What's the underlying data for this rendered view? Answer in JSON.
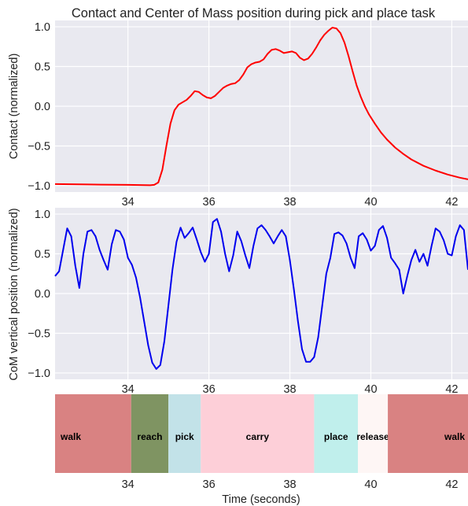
{
  "chart_data": [
    {
      "type": "line",
      "title": "Contact and Center of Mass position during pick and place task",
      "ylabel": "Contact (normalized)",
      "xlim": [
        32.2,
        42.4
      ],
      "ylim": [
        -1.08,
        1.08
      ],
      "xticks": [
        "34",
        "36",
        "38",
        "40",
        "42"
      ],
      "yticks": [
        "1.0",
        "0.5",
        "0.0",
        "−0.5",
        "−1.0"
      ],
      "grid": true,
      "series": [
        {
          "color": "#ff0000",
          "x": [
            32.2,
            33.0,
            34.0,
            34.55,
            34.65,
            34.75,
            34.85,
            34.95,
            35.05,
            35.15,
            35.25,
            35.35,
            35.45,
            35.55,
            35.65,
            35.75,
            35.85,
            35.95,
            36.05,
            36.15,
            36.25,
            36.35,
            36.45,
            36.55,
            36.65,
            36.75,
            36.85,
            36.95,
            37.05,
            37.15,
            37.25,
            37.35,
            37.45,
            37.55,
            37.65,
            37.75,
            37.85,
            37.95,
            38.05,
            38.15,
            38.25,
            38.35,
            38.45,
            38.55,
            38.65,
            38.75,
            38.85,
            38.95,
            39.05,
            39.15,
            39.25,
            39.35,
            39.45,
            39.55,
            39.65,
            39.75,
            39.85,
            39.95,
            40.1,
            40.25,
            40.4,
            40.6,
            40.8,
            41.0,
            41.3,
            41.6,
            41.9,
            42.2,
            42.4
          ],
          "y": [
            -0.98,
            -0.985,
            -0.99,
            -0.995,
            -0.99,
            -0.96,
            -0.8,
            -0.5,
            -0.22,
            -0.05,
            0.02,
            0.05,
            0.08,
            0.13,
            0.19,
            0.18,
            0.14,
            0.11,
            0.1,
            0.13,
            0.18,
            0.23,
            0.26,
            0.28,
            0.29,
            0.33,
            0.4,
            0.49,
            0.53,
            0.55,
            0.56,
            0.59,
            0.66,
            0.71,
            0.72,
            0.7,
            0.67,
            0.68,
            0.69,
            0.67,
            0.61,
            0.58,
            0.6,
            0.66,
            0.74,
            0.83,
            0.9,
            0.95,
            0.99,
            0.98,
            0.92,
            0.8,
            0.63,
            0.44,
            0.26,
            0.12,
            0.0,
            -0.1,
            -0.22,
            -0.33,
            -0.42,
            -0.52,
            -0.6,
            -0.67,
            -0.75,
            -0.81,
            -0.86,
            -0.9,
            -0.92
          ]
        }
      ]
    },
    {
      "type": "line",
      "ylabel": "CoM vertical position (normalized)",
      "xlim": [
        32.2,
        42.4
      ],
      "ylim": [
        -1.08,
        1.08
      ],
      "xticks": [
        "34",
        "36",
        "38",
        "40",
        "42"
      ],
      "yticks": [
        "1.0",
        "0.5",
        "0.0",
        "−0.5",
        "−1.0"
      ],
      "grid": true,
      "series": [
        {
          "color": "#0000ee",
          "x": [
            32.2,
            32.3,
            32.4,
            32.5,
            32.6,
            32.7,
            32.8,
            32.9,
            33.0,
            33.1,
            33.2,
            33.3,
            33.4,
            33.5,
            33.6,
            33.7,
            33.8,
            33.9,
            34.0,
            34.1,
            34.2,
            34.3,
            34.4,
            34.5,
            34.6,
            34.7,
            34.8,
            34.9,
            35.0,
            35.1,
            35.2,
            35.3,
            35.4,
            35.5,
            35.6,
            35.7,
            35.8,
            35.9,
            36.0,
            36.1,
            36.2,
            36.3,
            36.4,
            36.5,
            36.6,
            36.7,
            36.8,
            36.9,
            37.0,
            37.1,
            37.2,
            37.3,
            37.4,
            37.5,
            37.6,
            37.7,
            37.8,
            37.9,
            38.0,
            38.1,
            38.2,
            38.3,
            38.4,
            38.5,
            38.6,
            38.7,
            38.8,
            38.9,
            39.0,
            39.1,
            39.2,
            39.3,
            39.4,
            39.5,
            39.6,
            39.7,
            39.8,
            39.9,
            40.0,
            40.1,
            40.2,
            40.3,
            40.4,
            40.5,
            40.6,
            40.7,
            40.8,
            40.9,
            41.0,
            41.1,
            41.2,
            41.3,
            41.4,
            41.5,
            41.6,
            41.7,
            41.8,
            41.9,
            42.0,
            42.1,
            42.2,
            42.3,
            42.4
          ],
          "y": [
            0.22,
            0.28,
            0.55,
            0.82,
            0.72,
            0.35,
            0.07,
            0.5,
            0.78,
            0.8,
            0.72,
            0.55,
            0.42,
            0.3,
            0.62,
            0.8,
            0.78,
            0.68,
            0.45,
            0.36,
            0.2,
            -0.05,
            -0.35,
            -0.65,
            -0.87,
            -0.95,
            -0.9,
            -0.6,
            -0.15,
            0.3,
            0.65,
            0.83,
            0.7,
            0.76,
            0.83,
            0.68,
            0.52,
            0.4,
            0.5,
            0.9,
            0.94,
            0.78,
            0.5,
            0.28,
            0.48,
            0.78,
            0.66,
            0.48,
            0.32,
            0.6,
            0.82,
            0.86,
            0.8,
            0.72,
            0.63,
            0.72,
            0.8,
            0.72,
            0.42,
            0.05,
            -0.35,
            -0.7,
            -0.86,
            -0.86,
            -0.8,
            -0.55,
            -0.15,
            0.25,
            0.45,
            0.75,
            0.77,
            0.73,
            0.63,
            0.45,
            0.32,
            0.72,
            0.76,
            0.68,
            0.54,
            0.6,
            0.8,
            0.85,
            0.7,
            0.45,
            0.38,
            0.3,
            0.0,
            0.22,
            0.42,
            0.55,
            0.4,
            0.5,
            0.35,
            0.6,
            0.82,
            0.78,
            0.67,
            0.5,
            0.48,
            0.72,
            0.86,
            0.8,
            0.3
          ]
        }
      ]
    },
    {
      "type": "timeline",
      "xlabel": "Time (seconds)",
      "xlim": [
        32.2,
        42.4
      ],
      "xticks": [
        "34",
        "36",
        "38",
        "40",
        "42"
      ],
      "segments": [
        {
          "label": "walk",
          "start": 32.2,
          "end": 34.08,
          "color": "#d98282"
        },
        {
          "label": "reach",
          "start": 34.08,
          "end": 35.0,
          "color": "#7f9462"
        },
        {
          "label": "pick",
          "start": 35.0,
          "end": 35.8,
          "color": "#c2e2e8"
        },
        {
          "label": "carry",
          "start": 35.8,
          "end": 38.6,
          "color": "#fdcfd8"
        },
        {
          "label": "place",
          "start": 38.6,
          "end": 39.68,
          "color": "#c0efec"
        },
        {
          "label": "release",
          "start": 39.68,
          "end": 40.42,
          "color": "#fef6f5"
        },
        {
          "label": "walk",
          "start": 40.42,
          "end": 42.4,
          "color": "#d98282"
        }
      ]
    }
  ]
}
